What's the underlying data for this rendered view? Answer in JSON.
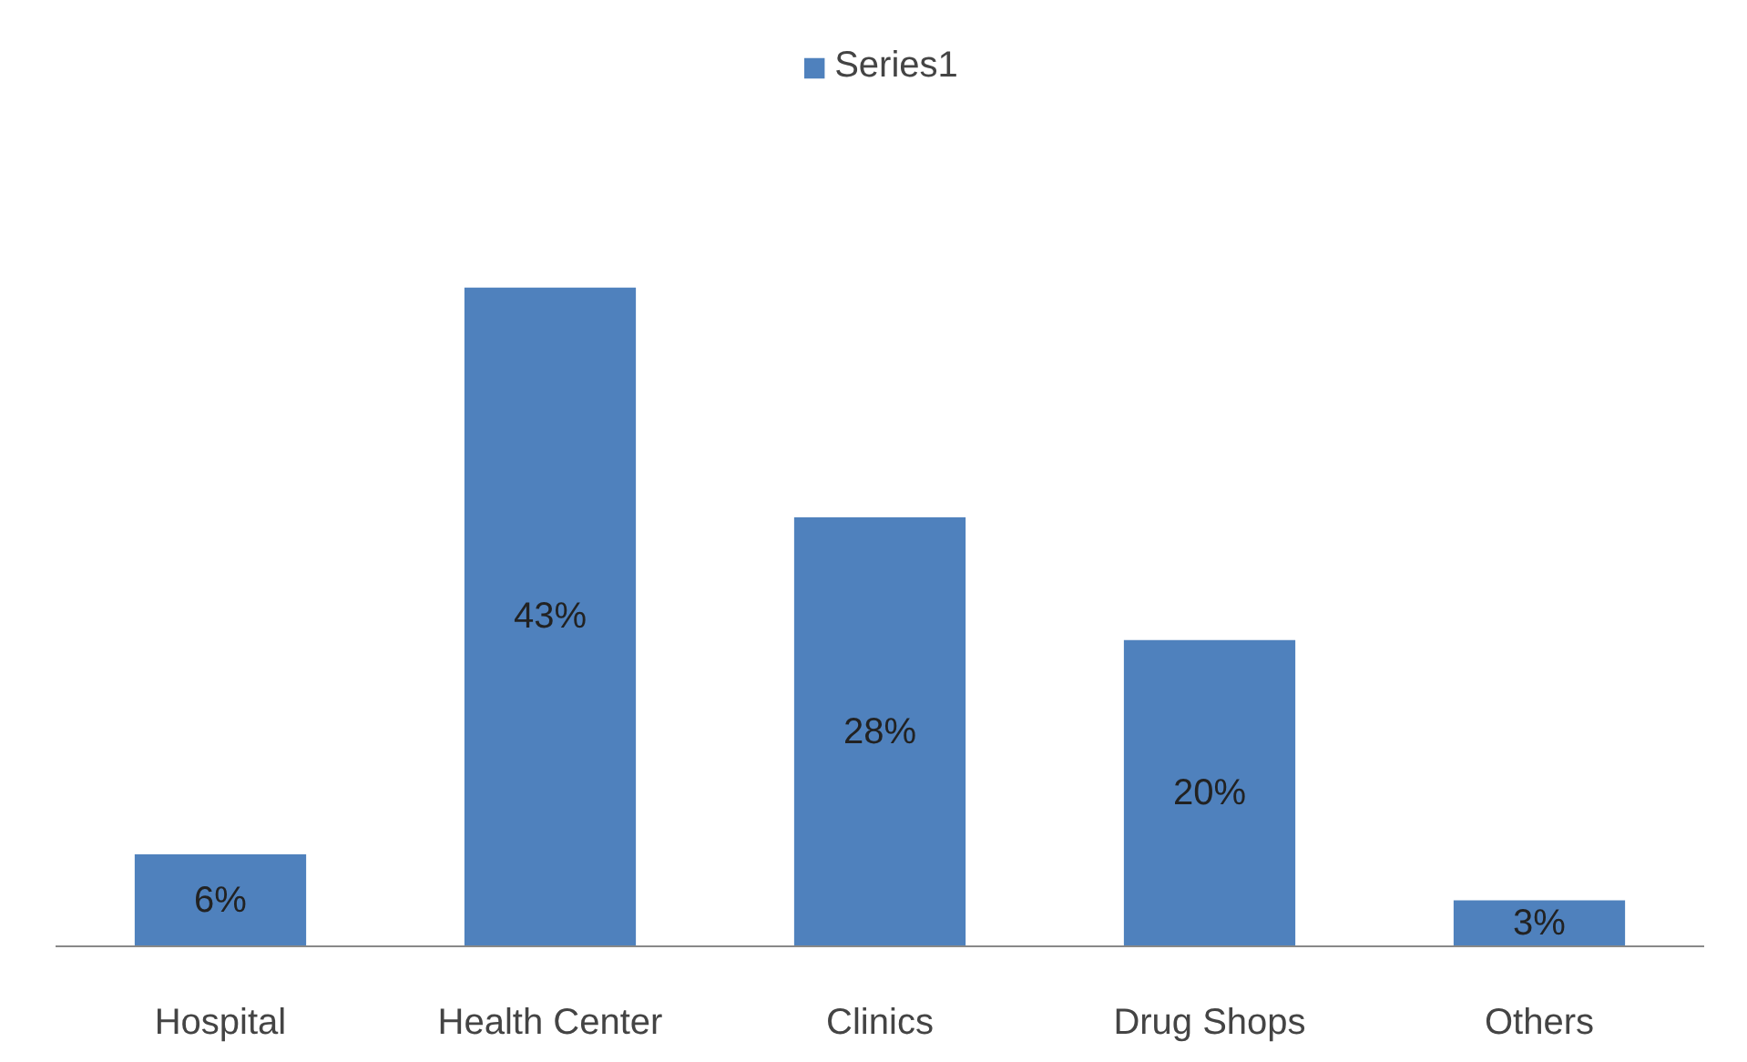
{
  "chart_data": {
    "type": "bar",
    "categories": [
      "Hospital",
      "Health Center",
      "Clinics",
      "Drug Shops",
      "Others"
    ],
    "series": [
      {
        "name": "Series1",
        "color": "#4f81bd",
        "values": [
          6,
          43,
          28,
          20,
          3
        ],
        "value_labels": [
          "6%",
          "43%",
          "28%",
          "20%",
          "3%"
        ]
      }
    ],
    "legend": "top"
  }
}
